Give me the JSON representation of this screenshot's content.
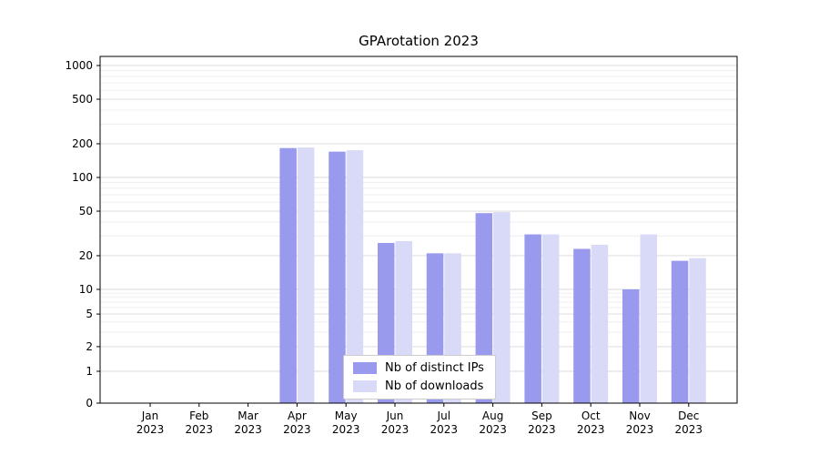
{
  "chart_data": {
    "type": "bar",
    "title": "GPArotation 2023",
    "xlabel": "",
    "ylabel": "",
    "yscale": "symlog",
    "grid": true,
    "legend_position": "lower center",
    "categories": [
      "Jan",
      "Feb",
      "Mar",
      "Apr",
      "May",
      "Jun",
      "Jul",
      "Aug",
      "Sep",
      "Oct",
      "Nov",
      "Dec"
    ],
    "year_label": "2023",
    "yticks": [
      0,
      1,
      2,
      5,
      10,
      20,
      50,
      100,
      200,
      500,
      1000
    ],
    "ylim": [
      0,
      1300
    ],
    "series": [
      {
        "name": "Nb of distinct IPs",
        "color": "#9999ee",
        "values": [
          0,
          0,
          0,
          183,
          170,
          26,
          21,
          48,
          31,
          23,
          10,
          18
        ]
      },
      {
        "name": "Nb of downloads",
        "color": "#d9d9f8",
        "values": [
          0,
          0,
          0,
          185,
          175,
          27,
          21,
          49,
          31,
          25,
          31,
          19
        ]
      }
    ]
  }
}
